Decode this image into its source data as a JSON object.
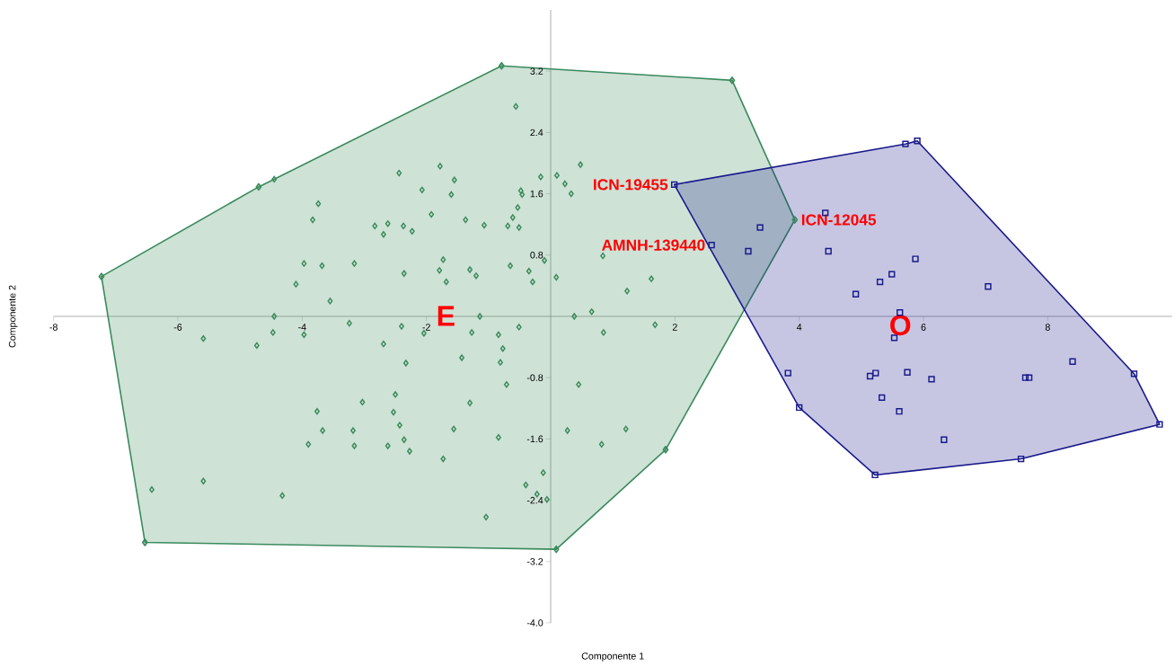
{
  "chart_data": {
    "type": "scatter",
    "xlabel": "Componente 1",
    "ylabel": "Componente 2",
    "xlim": [
      -8,
      10
    ],
    "ylim": [
      -4,
      4
    ],
    "xticks": [
      -8,
      -6,
      -4,
      -2,
      2,
      4,
      6,
      8
    ],
    "yticks": [
      {
        "value": -4,
        "label": "-4.0"
      },
      -3.2,
      -2.4,
      -1.6,
      -0.8,
      0.8,
      1.6,
      2.4,
      3.2
    ],
    "grid": false,
    "series": [
      {
        "type": "area",
        "color": "#3a8a5c",
        "marker": "diamond",
        "x": [
          -7.23,
          -4.7,
          -0.79,
          2.92,
          3.93,
          1.85,
          0.09,
          -6.53
        ],
        "values": [
          0.52,
          1.69,
          3.27,
          3.08,
          1.26,
          -1.74,
          -3.04,
          -2.95
        ]
      },
      {
        "type": "area",
        "color": "#1a1a8c",
        "marker": "none",
        "x": [
          1.99,
          5.71,
          5.9,
          9.39,
          9.8,
          7.57,
          5.22,
          4.0
        ],
        "values": [
          1.72,
          2.25,
          2.29,
          -0.75,
          -1.41,
          -1.86,
          -2.07,
          -1.19
        ]
      },
      {
        "color": "#3a8a5c",
        "marker": "diamond",
        "x": [
          -4.45,
          -3.74,
          -3.83,
          -2.83,
          -2.69,
          -3.97,
          -3.68,
          -3.16,
          -4.1,
          -3.55,
          -4.45,
          -4.47,
          -5.59,
          -4.73,
          -3.97,
          -3.24,
          -2.69,
          -3.03,
          -3.76,
          -3.67,
          -3.18,
          -3.9,
          -3.16,
          -6.42,
          -5.59,
          -4.32,
          -0.56,
          -2.44,
          -1.78,
          -1.55,
          -2.07,
          -1.6,
          -1.92,
          -1.37,
          -2.62,
          -2.37,
          -2.23,
          -1.07,
          -0.69,
          -0.51,
          -0.61,
          -0.53,
          -0.46,
          -0.48,
          -0.16,
          0.1,
          0.23,
          0.33,
          0.48,
          -1.73,
          -1.79,
          -2.36,
          -1.68,
          -1.3,
          -1.2,
          -0.65,
          -0.35,
          -0.29,
          -0.1,
          0.09,
          0.84,
          1.23,
          1.62,
          0.66,
          0.38,
          -1.14,
          -2.4,
          -2.04,
          -2.33,
          -1.27,
          -0.84,
          -0.51,
          -0.77,
          -0.81,
          -1.43,
          -0.71,
          -2.5,
          -1.3,
          -2.53,
          -2.43,
          -1.56,
          -2.36,
          -2.62,
          -2.27,
          -1.73,
          -0.84,
          -0.12,
          -0.4,
          -0.22,
          -0.06,
          -1.04,
          1.68,
          0.85,
          0.45,
          0.27,
          1.21,
          0.82
        ],
        "values": [
          1.79,
          1.47,
          1.26,
          1.18,
          1.07,
          0.69,
          0.66,
          0.69,
          0.42,
          0.2,
          0.0,
          -0.21,
          -0.29,
          -0.38,
          -0.24,
          -0.09,
          -0.36,
          -1.12,
          -1.24,
          -1.49,
          -1.49,
          -1.67,
          -1.69,
          -2.26,
          -2.15,
          -2.34,
          2.74,
          1.87,
          1.96,
          1.78,
          1.65,
          1.59,
          1.33,
          1.26,
          1.21,
          1.18,
          1.11,
          1.19,
          1.18,
          1.16,
          1.29,
          1.42,
          1.59,
          1.64,
          1.82,
          1.84,
          1.73,
          1.6,
          1.98,
          0.74,
          0.6,
          0.56,
          0.45,
          0.61,
          0.53,
          0.66,
          0.59,
          0.45,
          0.73,
          0.51,
          0.79,
          0.33,
          0.49,
          0.06,
          0.0,
          0.0,
          -0.13,
          -0.22,
          -0.61,
          -0.21,
          -0.24,
          -0.14,
          -0.42,
          -0.6,
          -0.54,
          -0.89,
          -1.02,
          -1.13,
          -1.25,
          -1.42,
          -1.47,
          -1.61,
          -1.69,
          -1.76,
          -1.86,
          -1.58,
          -2.04,
          -2.2,
          -2.32,
          -2.39,
          -2.62,
          -0.11,
          -0.21,
          -0.89,
          -1.49,
          -1.47,
          -1.67
        ]
      },
      {
        "color": "#1a1a8c",
        "marker": "square",
        "x": [
          1.99,
          5.71,
          5.9,
          4.42,
          3.37,
          2.59,
          3.18,
          4.47,
          5.87,
          5.49,
          5.3,
          4.91,
          5.62,
          5.53,
          3.82,
          4.0,
          5.14,
          5.23,
          5.74,
          5.33,
          5.61,
          5.22,
          7.04,
          6.13,
          7.64,
          7.7,
          8.4,
          9.39,
          9.8,
          7.57,
          6.33
        ],
        "values": [
          1.72,
          2.25,
          2.29,
          1.35,
          1.16,
          0.93,
          0.85,
          0.85,
          0.75,
          0.55,
          0.45,
          0.29,
          0.05,
          -0.28,
          -0.74,
          -1.19,
          -0.78,
          -0.74,
          -0.73,
          -1.06,
          -1.24,
          -2.07,
          0.39,
          -0.82,
          -0.8,
          -0.8,
          -0.59,
          -0.75,
          -1.41,
          -1.86,
          -1.61
        ]
      }
    ],
    "annotations": [
      "E",
      "O",
      {
        "text": "ICN-19455",
        "x": 1.99,
        "y": 1.72
      },
      {
        "text": "AMNH-139440",
        "x": 2.59,
        "y": 0.93
      },
      {
        "text": "ICN-12045",
        "x": 3.93,
        "y": 1.26
      }
    ]
  }
}
